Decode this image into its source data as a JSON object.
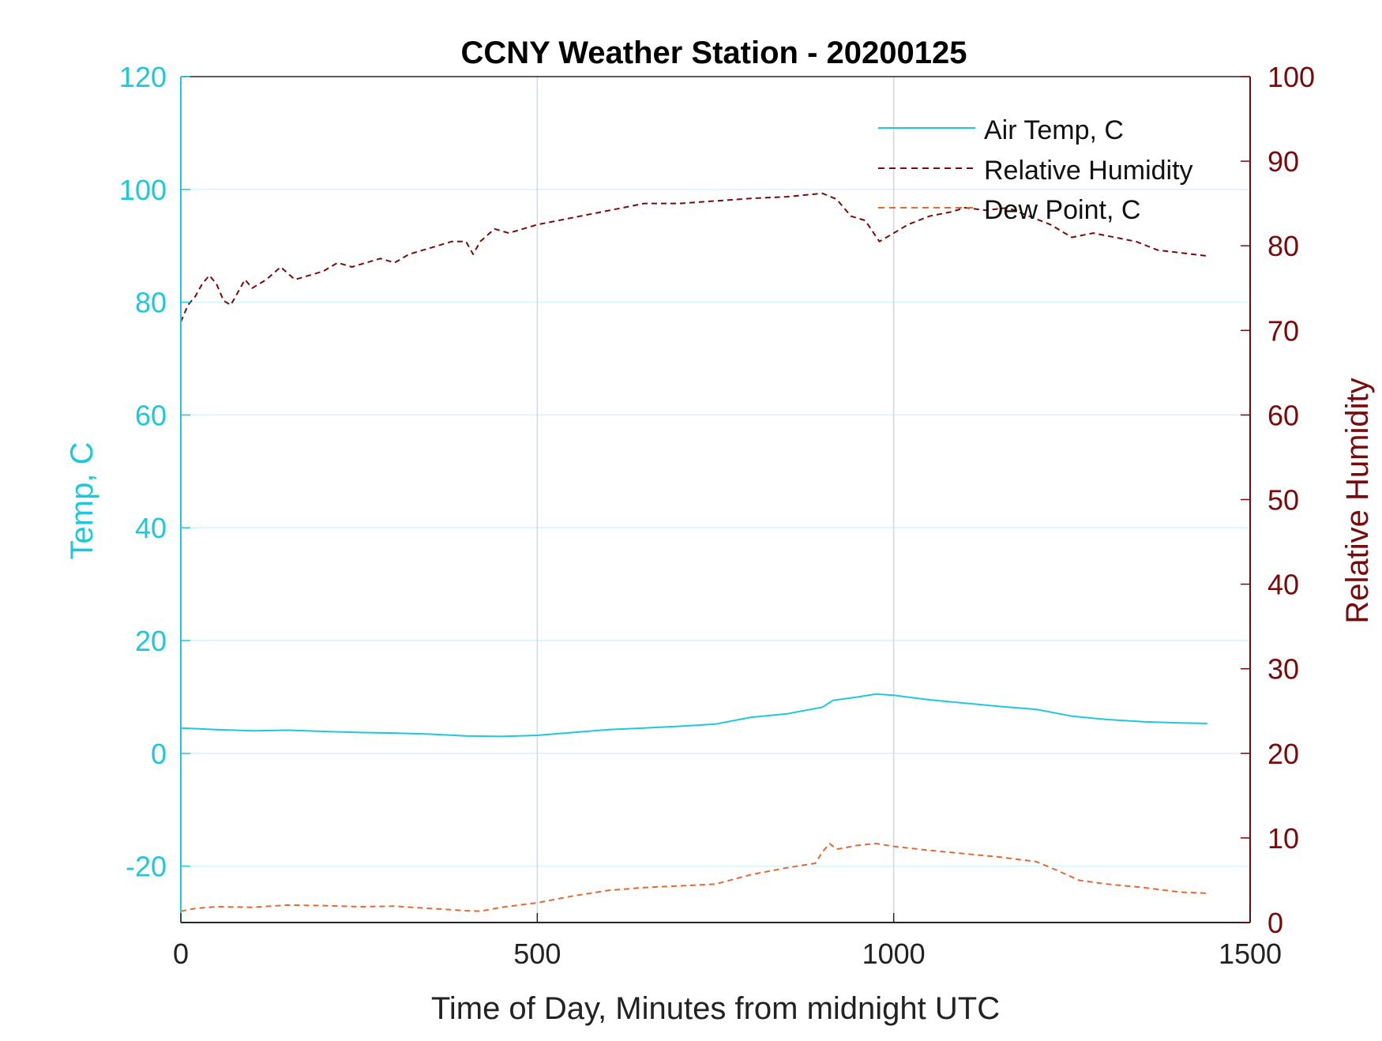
{
  "colors": {
    "air_temp": "#1ec8dc",
    "relative_humidity": "#7a0a0a",
    "dew_point": "#e06a36",
    "axis_text": "#222222",
    "grid_left": "#d6f4fa",
    "grid_x": "#d0d6e2"
  },
  "chart_data": {
    "type": "line",
    "title": "CCNY Weather Station - 20200125",
    "xlabel": "Time of Day, Minutes from midnight UTC",
    "ylabel_left": "Temp, C",
    "ylabel_right": "Relative Humidity",
    "xlim": [
      0,
      1500
    ],
    "ylim_left": [
      -30,
      120
    ],
    "ylim_right": [
      0,
      100
    ],
    "x_ticks": [
      0,
      500,
      1000,
      1500
    ],
    "y_ticks_left": [
      -20,
      0,
      20,
      40,
      60,
      80,
      100,
      120
    ],
    "y_ticks_right": [
      0,
      10,
      20,
      30,
      40,
      50,
      60,
      70,
      80,
      90,
      100
    ],
    "grid": true,
    "legend_position": "top-right",
    "series": [
      {
        "name": "Air Temp, C",
        "axis": "left",
        "style": "solid",
        "x": [
          0,
          50,
          100,
          150,
          200,
          250,
          300,
          350,
          400,
          450,
          500,
          550,
          600,
          650,
          700,
          750,
          800,
          850,
          900,
          915,
          950,
          975,
          1000,
          1050,
          1100,
          1150,
          1200,
          1250,
          1300,
          1350,
          1400,
          1440
        ],
        "y": [
          4.5,
          4.2,
          4.0,
          4.1,
          3.9,
          3.7,
          3.6,
          3.4,
          3.1,
          3.0,
          3.2,
          3.7,
          4.2,
          4.5,
          4.8,
          5.2,
          6.4,
          7.0,
          8.2,
          9.4,
          10.0,
          10.5,
          10.3,
          9.5,
          8.9,
          8.3,
          7.8,
          6.6,
          6.0,
          5.6,
          5.4,
          5.3
        ]
      },
      {
        "name": "Relative Humidity",
        "axis": "right",
        "style": "dashed",
        "x": [
          0,
          10,
          20,
          30,
          40,
          50,
          60,
          70,
          80,
          90,
          100,
          120,
          140,
          160,
          180,
          200,
          220,
          240,
          260,
          280,
          300,
          320,
          340,
          360,
          380,
          400,
          410,
          420,
          440,
          460,
          480,
          500,
          530,
          560,
          590,
          620,
          650,
          700,
          750,
          800,
          850,
          900,
          920,
          940,
          960,
          980,
          1000,
          1020,
          1050,
          1080,
          1100,
          1130,
          1160,
          1190,
          1220,
          1250,
          1280,
          1310,
          1340,
          1370,
          1400,
          1440
        ],
        "y": [
          71,
          73,
          74,
          75.5,
          76.5,
          75.5,
          73.5,
          73,
          74.5,
          76,
          75,
          76,
          77.5,
          76,
          76.5,
          77,
          78,
          77.5,
          78,
          78.5,
          78,
          79,
          79.5,
          80,
          80.5,
          80.5,
          79,
          80.5,
          82,
          81.5,
          82,
          82.5,
          83,
          83.5,
          84,
          84.5,
          85,
          85,
          85.3,
          85.6,
          85.8,
          86.2,
          85.5,
          83.5,
          83,
          80.5,
          81.5,
          82.5,
          83.5,
          84,
          84.5,
          84.2,
          84.5,
          83.5,
          82.5,
          81,
          81.5,
          81,
          80.5,
          79.5,
          79.2,
          78.8
        ]
      },
      {
        "name": "Dew Point, C",
        "axis": "left",
        "style": "dashed",
        "x": [
          0,
          20,
          50,
          100,
          150,
          200,
          250,
          300,
          350,
          400,
          420,
          450,
          500,
          550,
          600,
          650,
          700,
          750,
          800,
          850,
          890,
          900,
          910,
          920,
          950,
          975,
          1000,
          1050,
          1100,
          1150,
          1200,
          1230,
          1260,
          1300,
          1350,
          1400,
          1440
        ],
        "y": [
          -28,
          -27.5,
          -27.2,
          -27.3,
          -26.9,
          -27,
          -27.2,
          -27.1,
          -27.5,
          -27.9,
          -28,
          -27.3,
          -26.5,
          -25.3,
          -24.3,
          -23.8,
          -23.5,
          -23.2,
          -21.5,
          -20.3,
          -19.5,
          -17.5,
          -16,
          -17,
          -16.3,
          -16,
          -16.5,
          -17.2,
          -17.8,
          -18.4,
          -19.2,
          -20.8,
          -22.5,
          -23.2,
          -23.8,
          -24.6,
          -24.8
        ]
      }
    ]
  }
}
